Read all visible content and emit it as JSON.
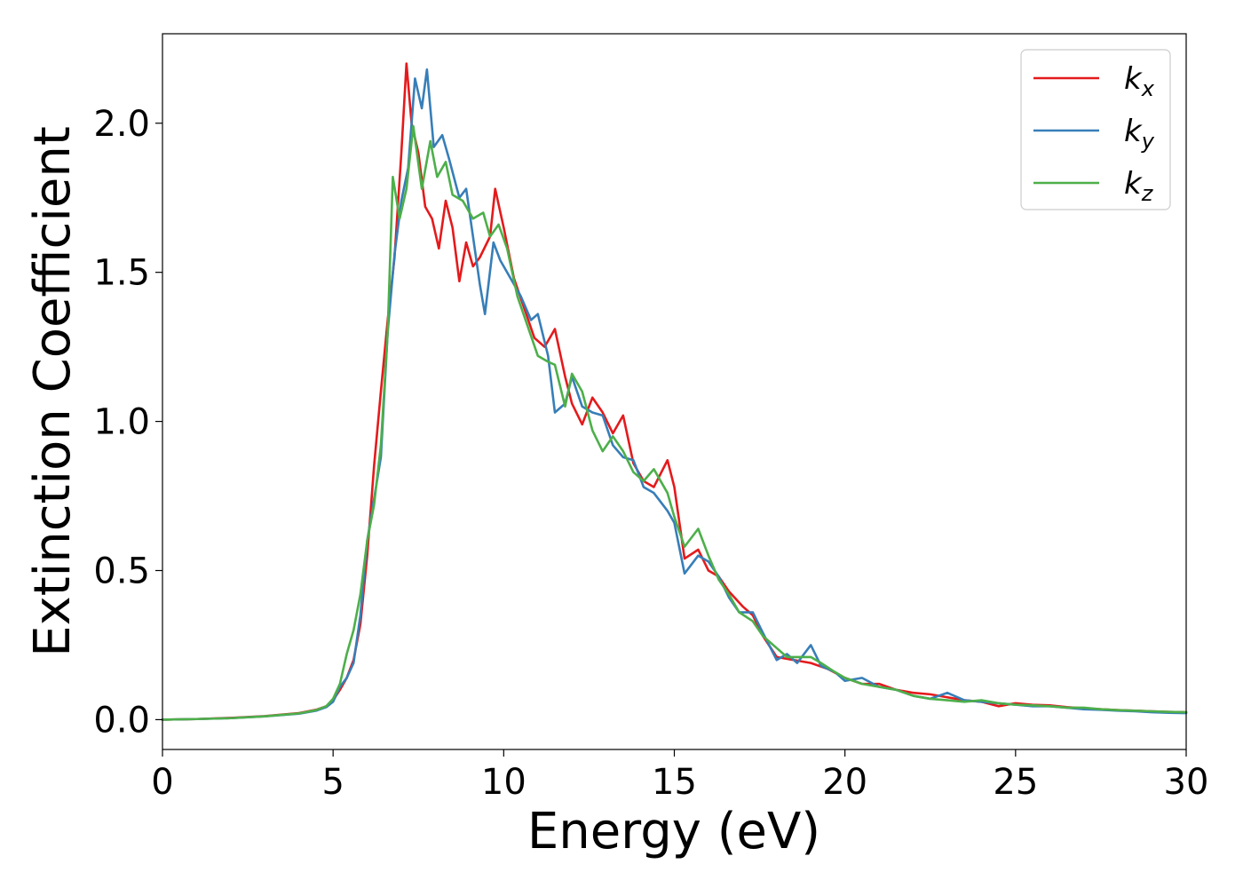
{
  "chart_data": {
    "type": "line",
    "title": "",
    "xlabel": "Energy (eV)",
    "ylabel": "Extinction Coefficient",
    "xlim": [
      0,
      30
    ],
    "ylim": [
      -0.1,
      2.3
    ],
    "x_ticks": [
      0,
      5,
      10,
      15,
      20,
      25,
      30
    ],
    "y_ticks": [
      0.0,
      0.5,
      1.0,
      1.5,
      2.0
    ],
    "x_tick_labels": [
      "0",
      "5",
      "10",
      "15",
      "20",
      "25",
      "30"
    ],
    "y_tick_labels": [
      "0.0",
      "0.5",
      "1.0",
      "1.5",
      "2.0"
    ],
    "grid": false,
    "legend_position": "top-right",
    "series": [
      {
        "name": "k_x",
        "label_main": "k",
        "label_sub": "x",
        "color": "#e41a1c",
        "points": [
          [
            0,
            0.0
          ],
          [
            1,
            0.002
          ],
          [
            2,
            0.006
          ],
          [
            3,
            0.012
          ],
          [
            4,
            0.022
          ],
          [
            4.5,
            0.033
          ],
          [
            4.8,
            0.045
          ],
          [
            5.0,
            0.065
          ],
          [
            5.2,
            0.1
          ],
          [
            5.4,
            0.14
          ],
          [
            5.6,
            0.2
          ],
          [
            5.8,
            0.32
          ],
          [
            6.0,
            0.55
          ],
          [
            6.2,
            0.85
          ],
          [
            6.4,
            1.1
          ],
          [
            6.6,
            1.34
          ],
          [
            6.8,
            1.55
          ],
          [
            7.0,
            1.9
          ],
          [
            7.15,
            2.2
          ],
          [
            7.3,
            2.0
          ],
          [
            7.5,
            1.9
          ],
          [
            7.7,
            1.72
          ],
          [
            7.9,
            1.68
          ],
          [
            8.1,
            1.58
          ],
          [
            8.3,
            1.74
          ],
          [
            8.5,
            1.65
          ],
          [
            8.7,
            1.47
          ],
          [
            8.9,
            1.6
          ],
          [
            9.1,
            1.52
          ],
          [
            9.3,
            1.55
          ],
          [
            9.6,
            1.62
          ],
          [
            9.75,
            1.78
          ],
          [
            10.0,
            1.65
          ],
          [
            10.3,
            1.48
          ],
          [
            10.6,
            1.38
          ],
          [
            10.9,
            1.28
          ],
          [
            11.2,
            1.25
          ],
          [
            11.5,
            1.31
          ],
          [
            11.8,
            1.15
          ],
          [
            12.0,
            1.06
          ],
          [
            12.3,
            0.99
          ],
          [
            12.6,
            1.08
          ],
          [
            12.9,
            1.03
          ],
          [
            13.2,
            0.96
          ],
          [
            13.5,
            1.02
          ],
          [
            13.8,
            0.86
          ],
          [
            14.1,
            0.8
          ],
          [
            14.4,
            0.78
          ],
          [
            14.8,
            0.87
          ],
          [
            15.0,
            0.78
          ],
          [
            15.3,
            0.54
          ],
          [
            15.7,
            0.57
          ],
          [
            16.0,
            0.5
          ],
          [
            16.3,
            0.48
          ],
          [
            16.6,
            0.43
          ],
          [
            17.0,
            0.38
          ],
          [
            17.3,
            0.35
          ],
          [
            17.6,
            0.28
          ],
          [
            18.0,
            0.21
          ],
          [
            18.5,
            0.2
          ],
          [
            19.0,
            0.19
          ],
          [
            19.5,
            0.17
          ],
          [
            20.0,
            0.14
          ],
          [
            20.5,
            0.12
          ],
          [
            21.0,
            0.12
          ],
          [
            21.5,
            0.1
          ],
          [
            22.0,
            0.09
          ],
          [
            22.5,
            0.085
          ],
          [
            23.0,
            0.075
          ],
          [
            23.5,
            0.065
          ],
          [
            24.0,
            0.06
          ],
          [
            24.5,
            0.045
          ],
          [
            25.0,
            0.055
          ],
          [
            25.5,
            0.05
          ],
          [
            26.0,
            0.048
          ],
          [
            26.5,
            0.042
          ],
          [
            27.0,
            0.038
          ],
          [
            27.5,
            0.035
          ],
          [
            28.0,
            0.032
          ],
          [
            28.5,
            0.03
          ],
          [
            29.0,
            0.028
          ],
          [
            29.5,
            0.026
          ],
          [
            30.0,
            0.025
          ]
        ]
      },
      {
        "name": "k_y",
        "label_main": "k",
        "label_sub": "y",
        "color": "#377eb8",
        "points": [
          [
            0,
            0.0
          ],
          [
            1,
            0.002
          ],
          [
            2,
            0.005
          ],
          [
            3,
            0.011
          ],
          [
            4,
            0.02
          ],
          [
            4.5,
            0.03
          ],
          [
            4.8,
            0.042
          ],
          [
            5.0,
            0.06
          ],
          [
            5.2,
            0.11
          ],
          [
            5.4,
            0.14
          ],
          [
            5.6,
            0.19
          ],
          [
            5.8,
            0.35
          ],
          [
            6.0,
            0.6
          ],
          [
            6.2,
            0.74
          ],
          [
            6.4,
            0.88
          ],
          [
            6.6,
            1.3
          ],
          [
            6.8,
            1.56
          ],
          [
            7.0,
            1.74
          ],
          [
            7.2,
            1.85
          ],
          [
            7.4,
            2.15
          ],
          [
            7.6,
            2.05
          ],
          [
            7.75,
            2.18
          ],
          [
            7.95,
            1.92
          ],
          [
            8.2,
            1.96
          ],
          [
            8.4,
            1.88
          ],
          [
            8.7,
            1.75
          ],
          [
            8.9,
            1.78
          ],
          [
            9.1,
            1.62
          ],
          [
            9.3,
            1.46
          ],
          [
            9.45,
            1.36
          ],
          [
            9.7,
            1.6
          ],
          [
            9.9,
            1.54
          ],
          [
            10.2,
            1.48
          ],
          [
            10.5,
            1.42
          ],
          [
            10.8,
            1.34
          ],
          [
            11.0,
            1.36
          ],
          [
            11.3,
            1.22
          ],
          [
            11.5,
            1.03
          ],
          [
            11.8,
            1.06
          ],
          [
            12.0,
            1.15
          ],
          [
            12.3,
            1.05
          ],
          [
            12.6,
            1.03
          ],
          [
            12.9,
            1.02
          ],
          [
            13.2,
            0.92
          ],
          [
            13.5,
            0.88
          ],
          [
            13.8,
            0.87
          ],
          [
            14.1,
            0.78
          ],
          [
            14.4,
            0.76
          ],
          [
            14.8,
            0.7
          ],
          [
            15.0,
            0.66
          ],
          [
            15.3,
            0.49
          ],
          [
            15.7,
            0.55
          ],
          [
            16.0,
            0.53
          ],
          [
            16.3,
            0.48
          ],
          [
            16.6,
            0.41
          ],
          [
            16.9,
            0.36
          ],
          [
            17.3,
            0.36
          ],
          [
            17.6,
            0.29
          ],
          [
            18.0,
            0.2
          ],
          [
            18.3,
            0.22
          ],
          [
            18.6,
            0.19
          ],
          [
            19.0,
            0.25
          ],
          [
            19.3,
            0.18
          ],
          [
            19.7,
            0.16
          ],
          [
            20.0,
            0.13
          ],
          [
            20.5,
            0.14
          ],
          [
            21.0,
            0.11
          ],
          [
            21.5,
            0.1
          ],
          [
            22.0,
            0.08
          ],
          [
            22.5,
            0.07
          ],
          [
            23.0,
            0.09
          ],
          [
            23.5,
            0.065
          ],
          [
            24.0,
            0.06
          ],
          [
            24.5,
            0.055
          ],
          [
            25.0,
            0.05
          ],
          [
            25.5,
            0.045
          ],
          [
            26.0,
            0.045
          ],
          [
            26.5,
            0.04
          ],
          [
            27.0,
            0.035
          ],
          [
            27.5,
            0.033
          ],
          [
            28.0,
            0.03
          ],
          [
            28.5,
            0.028
          ],
          [
            29.0,
            0.025
          ],
          [
            29.5,
            0.023
          ],
          [
            30.0,
            0.022
          ]
        ]
      },
      {
        "name": "k_z",
        "label_main": "k",
        "label_sub": "z",
        "color": "#4daf4a",
        "points": [
          [
            0,
            0.0
          ],
          [
            1,
            0.002
          ],
          [
            2,
            0.005
          ],
          [
            3,
            0.011
          ],
          [
            4,
            0.021
          ],
          [
            4.5,
            0.032
          ],
          [
            4.8,
            0.045
          ],
          [
            5.0,
            0.07
          ],
          [
            5.2,
            0.12
          ],
          [
            5.4,
            0.22
          ],
          [
            5.6,
            0.3
          ],
          [
            5.8,
            0.42
          ],
          [
            6.0,
            0.6
          ],
          [
            6.2,
            0.72
          ],
          [
            6.4,
            0.92
          ],
          [
            6.6,
            1.3
          ],
          [
            6.75,
            1.82
          ],
          [
            6.95,
            1.68
          ],
          [
            7.15,
            1.78
          ],
          [
            7.35,
            1.99
          ],
          [
            7.6,
            1.78
          ],
          [
            7.85,
            1.94
          ],
          [
            8.05,
            1.82
          ],
          [
            8.3,
            1.87
          ],
          [
            8.5,
            1.76
          ],
          [
            8.8,
            1.74
          ],
          [
            9.1,
            1.68
          ],
          [
            9.4,
            1.7
          ],
          [
            9.6,
            1.62
          ],
          [
            9.85,
            1.66
          ],
          [
            10.1,
            1.58
          ],
          [
            10.4,
            1.42
          ],
          [
            10.7,
            1.32
          ],
          [
            11.0,
            1.22
          ],
          [
            11.3,
            1.2
          ],
          [
            11.5,
            1.19
          ],
          [
            11.8,
            1.05
          ],
          [
            12.0,
            1.16
          ],
          [
            12.3,
            1.1
          ],
          [
            12.6,
            0.97
          ],
          [
            12.9,
            0.9
          ],
          [
            13.2,
            0.95
          ],
          [
            13.5,
            0.9
          ],
          [
            13.8,
            0.83
          ],
          [
            14.1,
            0.8
          ],
          [
            14.4,
            0.84
          ],
          [
            14.8,
            0.76
          ],
          [
            15.0,
            0.68
          ],
          [
            15.3,
            0.58
          ],
          [
            15.7,
            0.64
          ],
          [
            16.0,
            0.55
          ],
          [
            16.3,
            0.47
          ],
          [
            16.6,
            0.42
          ],
          [
            16.9,
            0.36
          ],
          [
            17.3,
            0.33
          ],
          [
            17.6,
            0.28
          ],
          [
            18.0,
            0.24
          ],
          [
            18.3,
            0.21
          ],
          [
            18.6,
            0.21
          ],
          [
            19.0,
            0.21
          ],
          [
            19.3,
            0.19
          ],
          [
            19.7,
            0.16
          ],
          [
            20.0,
            0.14
          ],
          [
            20.5,
            0.12
          ],
          [
            21.0,
            0.11
          ],
          [
            21.5,
            0.1
          ],
          [
            22.0,
            0.08
          ],
          [
            22.5,
            0.07
          ],
          [
            23.0,
            0.065
          ],
          [
            23.5,
            0.06
          ],
          [
            24.0,
            0.065
          ],
          [
            24.5,
            0.055
          ],
          [
            25.0,
            0.05
          ],
          [
            25.5,
            0.048
          ],
          [
            26.0,
            0.045
          ],
          [
            26.5,
            0.04
          ],
          [
            27.0,
            0.04
          ],
          [
            27.5,
            0.035
          ],
          [
            28.0,
            0.032
          ],
          [
            28.5,
            0.03
          ],
          [
            29.0,
            0.028
          ],
          [
            29.5,
            0.026
          ],
          [
            30.0,
            0.025
          ]
        ]
      }
    ]
  }
}
